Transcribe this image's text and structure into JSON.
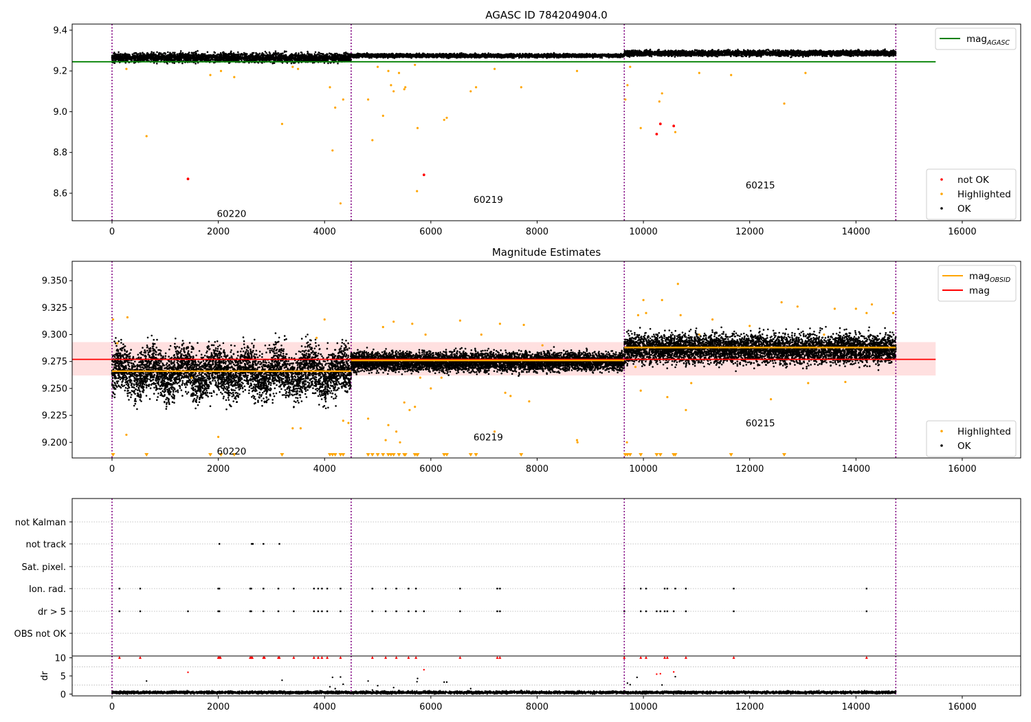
{
  "chart_data": [
    {
      "type": "scatter",
      "title": "AGASC ID 784204904.0",
      "xlim": [
        -750,
        17100
      ],
      "ylim": [
        8.465,
        9.43
      ],
      "x_ticks": [
        0,
        2000,
        4000,
        6000,
        8000,
        10000,
        12000,
        14000,
        16000
      ],
      "y_ticks": [
        8.6,
        8.8,
        9.0,
        9.2,
        9.4
      ],
      "y_tick_labels": [
        "8.6",
        "8.8",
        "9.0",
        "9.2",
        "9.4"
      ],
      "observation_boundaries": [
        0,
        4500,
        9640,
        14750
      ],
      "observation_labels": [
        {
          "text": "60220",
          "x": 2250,
          "y": 8.5
        },
        {
          "text": "60219",
          "x": 7080,
          "y": 8.57
        },
        {
          "text": "60215",
          "x": 12200,
          "y": 8.64
        }
      ],
      "lines": [
        {
          "name": "mag",
          "subscript": "AGASC",
          "color": "#008000",
          "x": [
            -750,
            15500
          ],
          "y": [
            9.245,
            9.245
          ]
        }
      ],
      "ok_bands": [
        {
          "x": [
            0,
            4500
          ],
          "center": 9.265,
          "spread": 0.02
        },
        {
          "x": [
            4500,
            9640
          ],
          "center": 9.275,
          "spread": 0.008
        },
        {
          "x": [
            9640,
            14750
          ],
          "center": 9.287,
          "spread": 0.012
        }
      ],
      "highlighted_points": [
        [
          270,
          9.21
        ],
        [
          650,
          8.88
        ],
        [
          1850,
          9.18
        ],
        [
          2050,
          9.2
        ],
        [
          2300,
          9.17
        ],
        [
          3200,
          8.94
        ],
        [
          3400,
          9.22
        ],
        [
          3500,
          9.21
        ],
        [
          4100,
          9.12
        ],
        [
          4150,
          8.81
        ],
        [
          4200,
          9.02
        ],
        [
          4300,
          8.55
        ],
        [
          4350,
          9.06
        ],
        [
          4820,
          9.06
        ],
        [
          4900,
          8.86
        ],
        [
          5000,
          9.22
        ],
        [
          5100,
          8.98
        ],
        [
          5200,
          9.2
        ],
        [
          5250,
          9.13
        ],
        [
          5300,
          9.1
        ],
        [
          5400,
          9.19
        ],
        [
          5500,
          9.11
        ],
        [
          5520,
          9.12
        ],
        [
          5700,
          9.23
        ],
        [
          5750,
          8.92
        ],
        [
          5740,
          8.61
        ],
        [
          6250,
          8.96
        ],
        [
          6300,
          8.97
        ],
        [
          6750,
          9.1
        ],
        [
          6850,
          9.12
        ],
        [
          7200,
          9.21
        ],
        [
          7700,
          9.12
        ],
        [
          8750,
          9.2
        ],
        [
          9660,
          9.06
        ],
        [
          9700,
          9.13
        ],
        [
          9750,
          9.22
        ],
        [
          9950,
          8.92
        ],
        [
          10300,
          9.05
        ],
        [
          10350,
          9.09
        ],
        [
          10600,
          8.9
        ],
        [
          11050,
          9.19
        ],
        [
          11650,
          9.18
        ],
        [
          12650,
          9.04
        ],
        [
          13050,
          9.19
        ]
      ],
      "not_ok_points": [
        [
          1430,
          8.67
        ],
        [
          5870,
          8.69
        ],
        [
          10250,
          8.89
        ],
        [
          10320,
          8.94
        ],
        [
          10570,
          8.93
        ]
      ],
      "legend": {
        "placement": "top-right",
        "entries": [
          {
            "label": "mag",
            "subscript": "AGASC",
            "color": "#008000"
          }
        ]
      },
      "legend2": {
        "placement": "bottom-right",
        "entries": [
          {
            "label": "not OK",
            "color": "#ff0000"
          },
          {
            "label": "Highlighted",
            "color": "#ffa500"
          },
          {
            "label": "OK",
            "color": "#000000"
          }
        ]
      }
    },
    {
      "type": "scatter",
      "title": "Magnitude Estimates",
      "xlim": [
        -750,
        17100
      ],
      "ylim": [
        9.1855,
        9.368
      ],
      "x_ticks": [
        0,
        2000,
        4000,
        6000,
        8000,
        10000,
        12000,
        14000,
        16000
      ],
      "y_ticks": [
        9.2,
        9.225,
        9.25,
        9.275,
        9.3,
        9.325,
        9.35
      ],
      "y_tick_labels": [
        "9.200",
        "9.225",
        "9.250",
        "9.275",
        "9.300",
        "9.325",
        "9.350"
      ],
      "observation_boundaries": [
        0,
        4500,
        9640,
        14750
      ],
      "observation_labels": [
        {
          "text": "60220",
          "x": 2250,
          "y": 9.192
        },
        {
          "text": "60219",
          "x": 7080,
          "y": 9.205
        },
        {
          "text": "60215",
          "x": 12200,
          "y": 9.218
        }
      ],
      "mag": {
        "name": "mag",
        "color": "#ff0000",
        "value": 9.277,
        "band": [
          9.262,
          9.293
        ],
        "x": [
          -750,
          15500
        ]
      },
      "mag_obsid": {
        "name": "mag",
        "subscript": "OBSID",
        "color": "#ffa500",
        "segments": [
          {
            "x": [
              0,
              4500
            ],
            "y": 9.266
          },
          {
            "x": [
              4500,
              9640
            ],
            "y": 9.276
          },
          {
            "x": [
              9640,
              14750
            ],
            "y": 9.288
          }
        ]
      },
      "ok_bands": [
        {
          "x": [
            0,
            4500
          ],
          "center": 9.265,
          "spread": 0.02
        },
        {
          "x": [
            4500,
            9640
          ],
          "center": 9.275,
          "spread": 0.008
        },
        {
          "x": [
            9640,
            14750
          ],
          "center": 9.287,
          "spread": 0.012
        }
      ],
      "highlighted_points": [
        [
          20,
          9.314
        ],
        [
          100,
          9.292
        ],
        [
          270,
          9.207
        ],
        [
          290,
          9.316
        ],
        [
          1500,
          9.26
        ],
        [
          2000,
          9.205
        ],
        [
          3400,
          9.213
        ],
        [
          3550,
          9.213
        ],
        [
          3850,
          9.297
        ],
        [
          4000,
          9.314
        ],
        [
          4350,
          9.22
        ],
        [
          4450,
          9.218
        ],
        [
          4820,
          9.222
        ],
        [
          5100,
          9.307
        ],
        [
          5150,
          9.202
        ],
        [
          5200,
          9.216
        ],
        [
          5300,
          9.312
        ],
        [
          5350,
          9.21
        ],
        [
          5420,
          9.2
        ],
        [
          5500,
          9.237
        ],
        [
          5600,
          9.23
        ],
        [
          5650,
          9.31
        ],
        [
          5700,
          9.233
        ],
        [
          5800,
          9.26
        ],
        [
          5900,
          9.3
        ],
        [
          6000,
          9.25
        ],
        [
          6200,
          9.26
        ],
        [
          6550,
          9.313
        ],
        [
          6950,
          9.3
        ],
        [
          7200,
          9.21
        ],
        [
          7300,
          9.31
        ],
        [
          7400,
          9.246
        ],
        [
          7500,
          9.243
        ],
        [
          7750,
          9.309
        ],
        [
          7850,
          9.238
        ],
        [
          8100,
          9.29
        ],
        [
          8750,
          9.202
        ],
        [
          8760,
          9.2
        ],
        [
          9690,
          9.2
        ],
        [
          9850,
          9.27
        ],
        [
          9900,
          9.318
        ],
        [
          9950,
          9.248
        ],
        [
          10000,
          9.332
        ],
        [
          10050,
          9.32
        ],
        [
          10350,
          9.332
        ],
        [
          10450,
          9.242
        ],
        [
          10650,
          9.347
        ],
        [
          10700,
          9.318
        ],
        [
          10800,
          9.23
        ],
        [
          10900,
          9.255
        ],
        [
          11050,
          9.3
        ],
        [
          11300,
          9.314
        ],
        [
          12000,
          9.308
        ],
        [
          12400,
          9.24
        ],
        [
          12600,
          9.33
        ],
        [
          12900,
          9.326
        ],
        [
          13100,
          9.255
        ],
        [
          13400,
          9.3
        ],
        [
          13600,
          9.324
        ],
        [
          13800,
          9.256
        ],
        [
          14000,
          9.324
        ],
        [
          14200,
          9.32
        ],
        [
          14300,
          9.328
        ],
        [
          14700,
          9.32
        ]
      ],
      "below_axis_markers": [
        20,
        650,
        1850,
        2050,
        2300,
        3200,
        4100,
        4150,
        4200,
        4300,
        4350,
        4820,
        4900,
        5000,
        5100,
        5200,
        5250,
        5300,
        5400,
        5500,
        5520,
        5700,
        5750,
        5740,
        6250,
        6300,
        6750,
        6850,
        7700,
        9660,
        9700,
        9750,
        9950,
        10250,
        10320,
        10570,
        10600,
        11650,
        12650
      ],
      "legend": {
        "placement": "top-right",
        "entries": [
          {
            "label": "mag",
            "subscript": "OBSID",
            "color": "#ffa500"
          },
          {
            "label": "mag",
            "color": "#ff0000"
          }
        ]
      },
      "legend2": {
        "placement": "bottom-right",
        "entries": [
          {
            "label": "Highlighted",
            "color": "#ffa500"
          },
          {
            "label": "OK",
            "color": "#000000"
          }
        ]
      }
    },
    {
      "type": "scatter",
      "xlim": [
        -750,
        17100
      ],
      "observation_boundaries": [
        0,
        4500,
        9640,
        14750
      ],
      "flag_rows": [
        "not Kalman",
        "not track",
        "Sat. pixel.",
        "Ion. rad.",
        "dr > 5",
        "OBS not OK"
      ],
      "flag_points": {
        "not track": [
          2020,
          2630,
          2650,
          2850,
          3150
        ],
        "Ion. rad.": [
          140,
          530,
          2000,
          2020,
          2600,
          2620,
          2850,
          3130,
          3420,
          3800,
          3880,
          3950,
          4050,
          4300,
          4900,
          5150,
          5350,
          5580,
          5720,
          6550,
          7250,
          7300,
          9640,
          9950,
          10050,
          10400,
          10450,
          10600,
          10800,
          11700,
          14200
        ],
        "dr > 5": [
          140,
          530,
          1430,
          2000,
          2020,
          2600,
          2620,
          2850,
          3130,
          3420,
          3800,
          3880,
          3950,
          4050,
          4300,
          4900,
          5150,
          5350,
          5580,
          5720,
          5870,
          6550,
          7250,
          7300,
          9640,
          9950,
          10050,
          10250,
          10320,
          10400,
          10450,
          10570,
          10800,
          11700,
          14200
        ]
      }
    },
    {
      "type": "scatter",
      "ylabel": "dr",
      "xlim": [
        -750,
        17100
      ],
      "ylim": [
        -0.5,
        10.5
      ],
      "x_ticks": [
        0,
        2000,
        4000,
        6000,
        8000,
        10000,
        12000,
        14000,
        16000
      ],
      "y_ticks": [
        0,
        5,
        10
      ],
      "y_tick_labels": [
        "0",
        "5",
        "10"
      ],
      "observation_boundaries": [
        0,
        4500,
        9640,
        14750
      ],
      "baseline": {
        "x": [
          0,
          14750
        ],
        "center": 0.45,
        "spread": 0.35
      },
      "clipped_points": [
        140,
        530,
        2000,
        2020,
        2040,
        2600,
        2620,
        2640,
        2850,
        2870,
        3130,
        3150,
        3420,
        3800,
        3880,
        3950,
        4050,
        4300,
        4900,
        5150,
        5350,
        5580,
        5720,
        6550,
        7250,
        7300,
        9640,
        9950,
        10050,
        10400,
        10450,
        10800,
        11700,
        14200
      ],
      "scattered_points": [
        [
          650,
          3.6
        ],
        [
          1430,
          6.0
        ],
        [
          3200,
          3.8
        ],
        [
          4100,
          2.0
        ],
        [
          4150,
          4.6
        ],
        [
          4200,
          1.5
        ],
        [
          4300,
          4.7
        ],
        [
          4350,
          2.7
        ],
        [
          4820,
          3.6
        ],
        [
          4900,
          1.1
        ],
        [
          5000,
          2.3
        ],
        [
          5300,
          1.8
        ],
        [
          5400,
          1.0
        ],
        [
          5740,
          3.4
        ],
        [
          5750,
          4.3
        ],
        [
          5870,
          6.7
        ],
        [
          6250,
          3.3
        ],
        [
          6300,
          3.3
        ],
        [
          6750,
          1.5
        ],
        [
          7700,
          1.0
        ],
        [
          9700,
          3.0
        ],
        [
          9750,
          2.6
        ],
        [
          9880,
          4.6
        ],
        [
          10250,
          5.5
        ],
        [
          10320,
          5.6
        ],
        [
          10350,
          2.5
        ],
        [
          10570,
          6.1
        ],
        [
          10600,
          4.8
        ]
      ]
    }
  ]
}
